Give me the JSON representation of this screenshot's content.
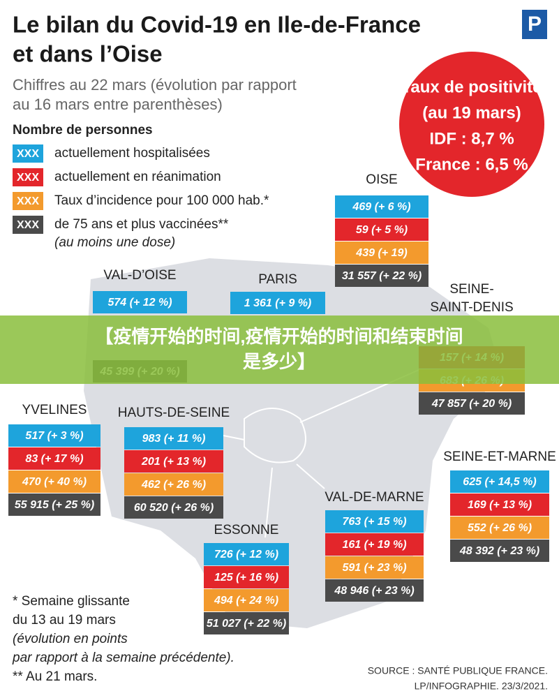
{
  "header": {
    "title": [
      "Le bilan du Covid-19 en Ile-de-France",
      "et dans l’Oise"
    ],
    "subtitle": [
      "Chiffres au 22 mars (évolution par rapport",
      "au 16 mars entre parenthèses)"
    ],
    "logo": "P"
  },
  "legend": {
    "heading": "Nombre de personnes",
    "items": [
      {
        "swatch": "XXX",
        "color": "#1ea4dc",
        "text": "actuellement hospitalisées"
      },
      {
        "swatch": "XXX",
        "color": "#e3262b",
        "text": "actuellement en réanimation"
      },
      {
        "swatch": "XXX",
        "color": "#f39a2d",
        "text": "Taux d’incidence pour 100 000 hab.*"
      },
      {
        "swatch": "XXX",
        "color": "#4a4a4a",
        "text": "de 75 ans et plus vaccinées**"
      }
    ],
    "note": "(au moins une dose)"
  },
  "positivity": [
    "Taux de positivité",
    "(au 19 mars)",
    "IDF : 8,7 %",
    "France : 6,5 %"
  ],
  "departments": [
    {
      "name": [
        "OISE"
      ],
      "rows": [
        {
          "color": "#1ea4dc",
          "text": "469 (+ 6 %)"
        },
        {
          "color": "#e3262b",
          "text": "59 (+ 5 %)"
        },
        {
          "color": "#f39a2d",
          "text": "439 (+ 19)"
        },
        {
          "color": "#4a4a4a",
          "text": "31 557 (+ 22 %)"
        }
      ]
    },
    {
      "name": [
        "VAL-D’OISE"
      ],
      "rows": [
        {
          "color": "#1ea4dc",
          "text": "574 (+ 12 %)"
        },
        {
          "color": "#4a4a4a",
          "text": "45 399 (+ 20 %)"
        }
      ]
    },
    {
      "name": [
        "PARIS"
      ],
      "rows": [
        {
          "color": "#1ea4dc",
          "text": "1 361 (+ 9 %)"
        }
      ]
    },
    {
      "name": [
        "SEINE-",
        "SAINT-DENIS"
      ],
      "rows": [
        {
          "color": "#e3262b",
          "text": "157 (+ 14 %)"
        },
        {
          "color": "#f39a2d",
          "text": "683 (+ 26 %)"
        },
        {
          "color": "#4a4a4a",
          "text": "47 857 (+ 20 %)"
        }
      ]
    },
    {
      "name": [
        "YVELINES"
      ],
      "rows": [
        {
          "color": "#1ea4dc",
          "text": "517 (+ 3 %)"
        },
        {
          "color": "#e3262b",
          "text": "83 (+ 17 %)"
        },
        {
          "color": "#f39a2d",
          "text": "470 (+ 40 %)"
        },
        {
          "color": "#4a4a4a",
          "text": "55 915 (+ 25 %)"
        }
      ]
    },
    {
      "name": [
        "HAUTS-DE-SEINE"
      ],
      "rows": [
        {
          "color": "#1ea4dc",
          "text": "983 (+ 11 %)"
        },
        {
          "color": "#e3262b",
          "text": "201 (+ 13 %)"
        },
        {
          "color": "#f39a2d",
          "text": "462 (+ 26 %)"
        },
        {
          "color": "#4a4a4a",
          "text": "60 520 (+ 26 %)"
        }
      ]
    },
    {
      "name": [
        "SEINE-ET-MARNE"
      ],
      "rows": [
        {
          "color": "#1ea4dc",
          "text": "625 (+ 14,5 %)"
        },
        {
          "color": "#e3262b",
          "text": "169 (+ 13 %)"
        },
        {
          "color": "#f39a2d",
          "text": "552 (+ 26 %)"
        },
        {
          "color": "#4a4a4a",
          "text": "48 392 (+ 23 %)"
        }
      ]
    },
    {
      "name": [
        "VAL-DE-MARNE"
      ],
      "rows": [
        {
          "color": "#1ea4dc",
          "text": "763 (+ 15 %)"
        },
        {
          "color": "#e3262b",
          "text": "161 (+ 19 %)"
        },
        {
          "color": "#f39a2d",
          "text": "591 (+ 23 %)"
        },
        {
          "color": "#4a4a4a",
          "text": "48 946 (+ 23 %)"
        }
      ]
    },
    {
      "name": [
        "ESSONNE"
      ],
      "rows": [
        {
          "color": "#1ea4dc",
          "text": "726 (+ 12 %)"
        },
        {
          "color": "#e3262b",
          "text": "125 (+ 16 %)"
        },
        {
          "color": "#f39a2d",
          "text": "494 (+ 24 %)"
        },
        {
          "color": "#4a4a4a",
          "text": "51 027 (+ 22 %)"
        }
      ]
    }
  ],
  "footnotes": [
    "* Semaine glissante",
    "du 13 au 19 mars",
    "(évolution en points",
    "par rapport à la semaine précédente).",
    "** Au 21 mars."
  ],
  "source": [
    "SOURCE : SANTÉ PUBLIQUE FRANCE.",
    "LP/INFOGRAPHIE.  23/3/2021."
  ],
  "banner": [
    "【疫情开始的时间,疫情开始的时间和结束时间",
    "是多少】"
  ]
}
